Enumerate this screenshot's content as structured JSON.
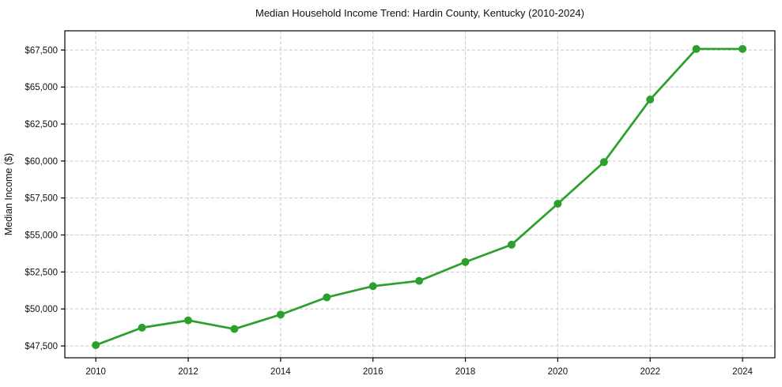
{
  "chart_data": {
    "type": "line",
    "title": "Median Household Income Trend: Hardin County, Kentucky (2010-2024)",
    "xlabel": "",
    "ylabel": "Median Income ($)",
    "x": [
      2010,
      2011,
      2012,
      2013,
      2014,
      2015,
      2016,
      2017,
      2018,
      2019,
      2020,
      2021,
      2022,
      2023,
      2024
    ],
    "series": [
      {
        "name": "Median Household Income",
        "values": [
          47556,
          48736,
          49229,
          48647,
          49618,
          50784,
          51538,
          51897,
          53175,
          54344,
          57112,
          59928,
          64153,
          67575,
          67575
        ]
      }
    ],
    "x_ticks": [
      2010,
      2012,
      2014,
      2016,
      2018,
      2020,
      2022,
      2024
    ],
    "x_tick_labels": [
      "2010",
      "2012",
      "2014",
      "2016",
      "2018",
      "2020",
      "2022",
      "2024"
    ],
    "y_ticks": [
      47500,
      50000,
      52500,
      55000,
      57500,
      60000,
      62500,
      65000,
      67500
    ],
    "y_tick_labels": [
      "$47,500",
      "$50,000",
      "$52,500",
      "$55,000",
      "$57,500",
      "$60,000",
      "$62,500",
      "$65,000",
      "$67,500"
    ],
    "xlim": [
      2009.33,
      2024.7
    ],
    "ylim": [
      46700,
      68800
    ],
    "grid": true,
    "legend": false,
    "colors": {
      "line": "#2ca02c",
      "marker": "#2ca02c",
      "grid": "#c9c9c9",
      "spine": "#000000",
      "text": "#111111",
      "background": "#ffffff"
    },
    "marker": "circle"
  }
}
